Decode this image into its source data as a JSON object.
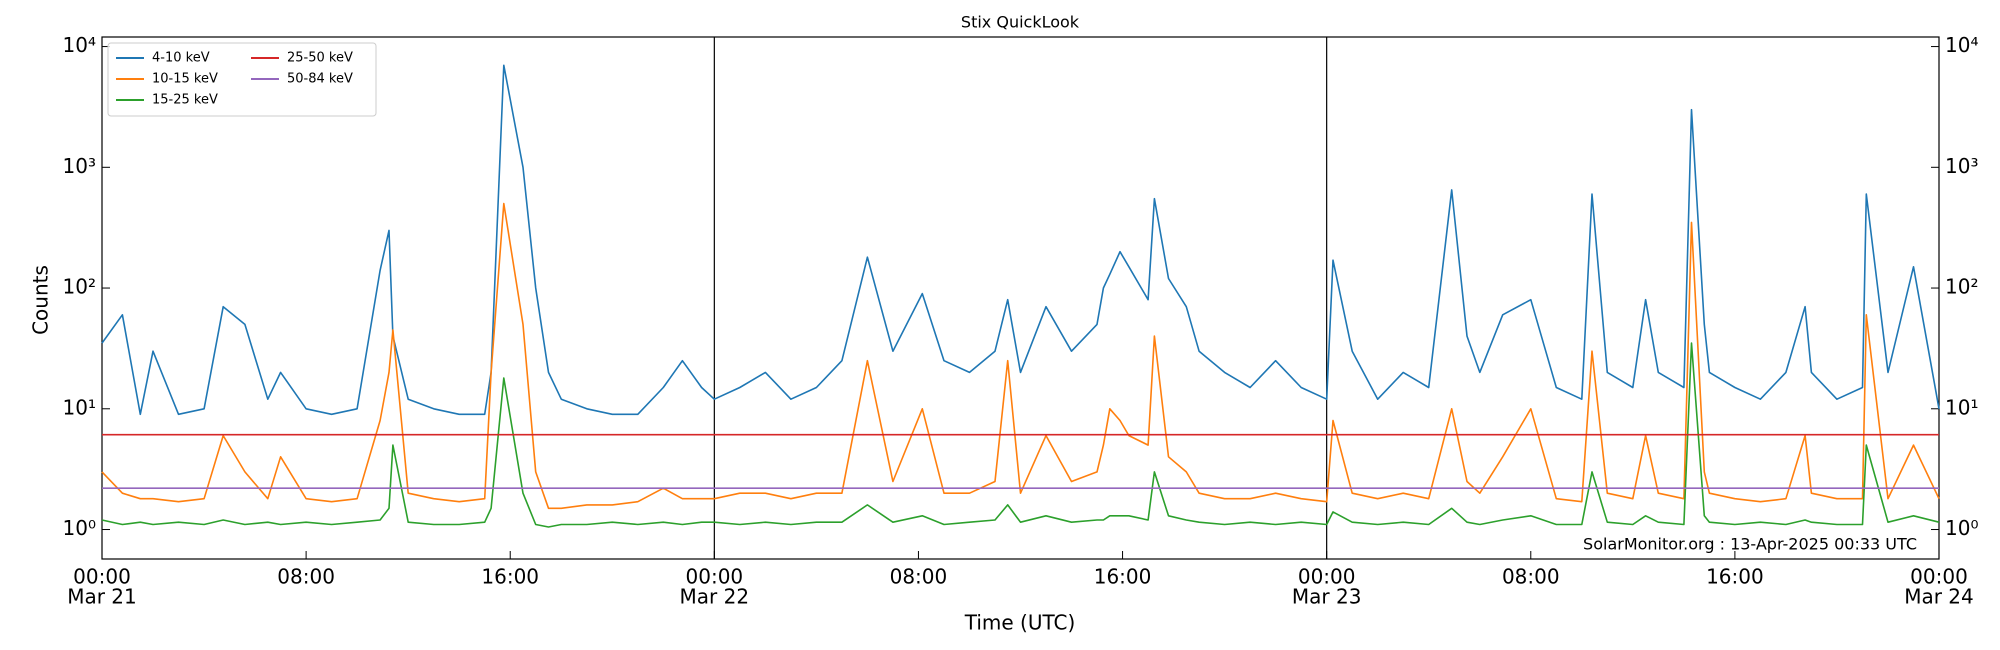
{
  "chart_data": {
    "type": "line",
    "title": "Stix QuickLook",
    "xlabel": "Time (UTC)",
    "ylabel": "Counts",
    "annotation": "SolarMonitor.org : 13-Apr-2025 00:33 UTC",
    "log_y": true,
    "legend": "upper left",
    "legend_columns": 2,
    "date_lines": true,
    "xlim": [
      0,
      72
    ],
    "ylim": [
      0.57,
      12000
    ],
    "xticks": [
      {
        "value": 0,
        "label": "00:00"
      },
      {
        "value": 8,
        "label": "08:00"
      },
      {
        "value": 16,
        "label": "16:00"
      },
      {
        "value": 24,
        "label": "00:00"
      },
      {
        "value": 32,
        "label": "08:00"
      },
      {
        "value": 40,
        "label": "16:00"
      },
      {
        "value": 48,
        "label": "00:00"
      },
      {
        "value": 56,
        "label": "08:00"
      },
      {
        "value": 64,
        "label": "16:00"
      },
      {
        "value": 72,
        "label": "00:00"
      }
    ],
    "xdate_ticks": [
      {
        "value": 0,
        "label": "Mar 21"
      },
      {
        "value": 24,
        "label": "Mar 22"
      },
      {
        "value": 48,
        "label": "Mar 23"
      },
      {
        "value": 72,
        "label": "Mar 24"
      }
    ],
    "yticks": [
      {
        "value": 1,
        "label": "10⁰"
      },
      {
        "value": 10,
        "label": "10¹"
      },
      {
        "value": 100,
        "label": "10²"
      },
      {
        "value": 1000,
        "label": "10³"
      },
      {
        "value": 10000,
        "label": "10⁴"
      }
    ],
    "x": [
      0,
      0.8,
      1.5,
      2,
      3,
      4,
      4.75,
      5.6,
      6.5,
      7,
      8,
      9,
      10,
      10.9,
      11.25,
      11.4,
      12,
      13,
      14,
      15,
      15.25,
      15.75,
      16.5,
      17,
      17.5,
      18,
      19,
      20,
      21,
      22,
      22.75,
      23.5,
      24,
      25,
      26,
      27,
      28,
      29,
      30,
      31,
      32.15,
      33,
      34,
      35,
      35.5,
      36,
      37,
      38,
      39,
      39.25,
      39.5,
      39.9,
      40.25,
      41,
      41.25,
      41.8,
      42.5,
      43,
      44,
      45,
      46,
      47,
      48,
      48.25,
      49,
      50,
      51,
      52,
      52.9,
      53.5,
      54,
      54.9,
      56,
      57,
      58,
      58.4,
      59,
      60,
      60.5,
      61,
      62,
      62.3,
      62.8,
      63,
      64,
      65,
      66,
      66.75,
      67,
      68,
      69,
      69.15,
      70,
      71,
      72
    ],
    "series": [
      {
        "name": "4-10 keV",
        "color": "#1f77b4",
        "values": [
          35,
          60,
          9,
          30,
          9,
          10,
          70,
          50,
          12,
          20,
          10,
          9,
          10,
          140,
          300,
          40,
          12,
          10,
          9,
          9,
          20,
          7000,
          1000,
          100,
          20,
          12,
          10,
          9,
          9,
          15,
          25,
          15,
          12,
          15,
          20,
          12,
          15,
          25,
          180,
          30,
          90,
          25,
          20,
          30,
          80,
          20,
          70,
          30,
          50,
          100,
          130,
          200,
          150,
          80,
          550,
          120,
          70,
          30,
          20,
          15,
          25,
          15,
          12,
          170,
          30,
          12,
          20,
          15,
          650,
          40,
          20,
          60,
          80,
          15,
          12,
          600,
          20,
          15,
          80,
          20,
          15,
          3000,
          50,
          20,
          15,
          12,
          20,
          70,
          20,
          12,
          15,
          600,
          20,
          150,
          10
        ]
      },
      {
        "name": "10-15 keV",
        "color": "#ff7f0e",
        "values": [
          3,
          2,
          1.8,
          1.8,
          1.7,
          1.8,
          6,
          3,
          1.8,
          4,
          1.8,
          1.7,
          1.8,
          8,
          20,
          45,
          2,
          1.8,
          1.7,
          1.8,
          20,
          500,
          50,
          3,
          1.5,
          1.5,
          1.6,
          1.6,
          1.7,
          2.2,
          1.8,
          1.8,
          1.8,
          2,
          2,
          1.8,
          2,
          2,
          25,
          2.5,
          10,
          2,
          2,
          2.5,
          25,
          2,
          6,
          2.5,
          3,
          5,
          10,
          8,
          6,
          5,
          40,
          4,
          3,
          2,
          1.8,
          1.8,
          2,
          1.8,
          1.7,
          8,
          2,
          1.8,
          2,
          1.8,
          10,
          2.5,
          2,
          4,
          10,
          1.8,
          1.7,
          30,
          2,
          1.8,
          6,
          2,
          1.8,
          350,
          3,
          2,
          1.8,
          1.7,
          1.8,
          6,
          2,
          1.8,
          1.8,
          60,
          1.8,
          5,
          1.8
        ]
      },
      {
        "name": "15-25 keV",
        "color": "#2ca02c",
        "values": [
          1.2,
          1.1,
          1.15,
          1.1,
          1.15,
          1.1,
          1.2,
          1.1,
          1.15,
          1.1,
          1.15,
          1.1,
          1.15,
          1.2,
          1.5,
          5,
          1.15,
          1.1,
          1.1,
          1.15,
          1.5,
          18,
          2,
          1.1,
          1.05,
          1.1,
          1.1,
          1.15,
          1.1,
          1.15,
          1.1,
          1.15,
          1.15,
          1.1,
          1.15,
          1.1,
          1.15,
          1.15,
          1.6,
          1.15,
          1.3,
          1.1,
          1.15,
          1.2,
          1.6,
          1.15,
          1.3,
          1.15,
          1.2,
          1.2,
          1.3,
          1.3,
          1.3,
          1.2,
          3,
          1.3,
          1.2,
          1.15,
          1.1,
          1.15,
          1.1,
          1.15,
          1.1,
          1.4,
          1.15,
          1.1,
          1.15,
          1.1,
          1.5,
          1.15,
          1.1,
          1.2,
          1.3,
          1.1,
          1.1,
          3,
          1.15,
          1.1,
          1.3,
          1.15,
          1.1,
          35,
          1.3,
          1.15,
          1.1,
          1.15,
          1.1,
          1.2,
          1.15,
          1.1,
          1.1,
          5,
          1.15,
          1.3,
          1.15
        ]
      },
      {
        "name": "25-50 keV",
        "color": "#d62728",
        "values": [
          6.1,
          6.1,
          6.1,
          6.1,
          6.1,
          6.1,
          6.1,
          6.1,
          6.1,
          6.1,
          6.1,
          6.1,
          6.1,
          6.1,
          6.1,
          6.1,
          6.1,
          6.1,
          6.1,
          6.1,
          6.1,
          6.1,
          6.1,
          6.1,
          6.1,
          6.1,
          6.1,
          6.1,
          6.1,
          6.1,
          6.1,
          6.1,
          6.1,
          6.1,
          6.1,
          6.1,
          6.1,
          6.1,
          6.1,
          6.1,
          6.1,
          6.1,
          6.1,
          6.1,
          6.1,
          6.1,
          6.1,
          6.1,
          6.1,
          6.1,
          6.1,
          6.1,
          6.1,
          6.1,
          6.1,
          6.1,
          6.1,
          6.1,
          6.1,
          6.1,
          6.1,
          6.1,
          6.1,
          6.1,
          6.1,
          6.1,
          6.1,
          6.1,
          6.1,
          6.1,
          6.1,
          6.1,
          6.1,
          6.1,
          6.1,
          6.1,
          6.1,
          6.1,
          6.1,
          6.1,
          6.1,
          6.1,
          6.1,
          6.1,
          6.1,
          6.1,
          6.1,
          6.1,
          6.1,
          6.1,
          6.1,
          6.1,
          6.1,
          6.1,
          6.1
        ]
      },
      {
        "name": "50-84 keV",
        "color": "#9467bd",
        "values": [
          2.2,
          2.2,
          2.2,
          2.2,
          2.2,
          2.2,
          2.2,
          2.2,
          2.2,
          2.2,
          2.2,
          2.2,
          2.2,
          2.2,
          2.2,
          2.2,
          2.2,
          2.2,
          2.2,
          2.2,
          2.2,
          2.2,
          2.2,
          2.2,
          2.2,
          2.2,
          2.2,
          2.2,
          2.2,
          2.2,
          2.2,
          2.2,
          2.2,
          2.2,
          2.2,
          2.2,
          2.2,
          2.2,
          2.2,
          2.2,
          2.2,
          2.2,
          2.2,
          2.2,
          2.2,
          2.2,
          2.2,
          2.2,
          2.2,
          2.2,
          2.2,
          2.2,
          2.2,
          2.2,
          2.2,
          2.2,
          2.2,
          2.2,
          2.2,
          2.2,
          2.2,
          2.2,
          2.2,
          2.2,
          2.2,
          2.2,
          2.2,
          2.2,
          2.2,
          2.2,
          2.2,
          2.2,
          2.2,
          2.2,
          2.2,
          2.2,
          2.2,
          2.2,
          2.2,
          2.2,
          2.2,
          2.2,
          2.2,
          2.2,
          2.2,
          2.2,
          2.2,
          2.2,
          2.2,
          2.2,
          2.2,
          2.2,
          2.2,
          2.2,
          2.2
        ]
      }
    ]
  }
}
